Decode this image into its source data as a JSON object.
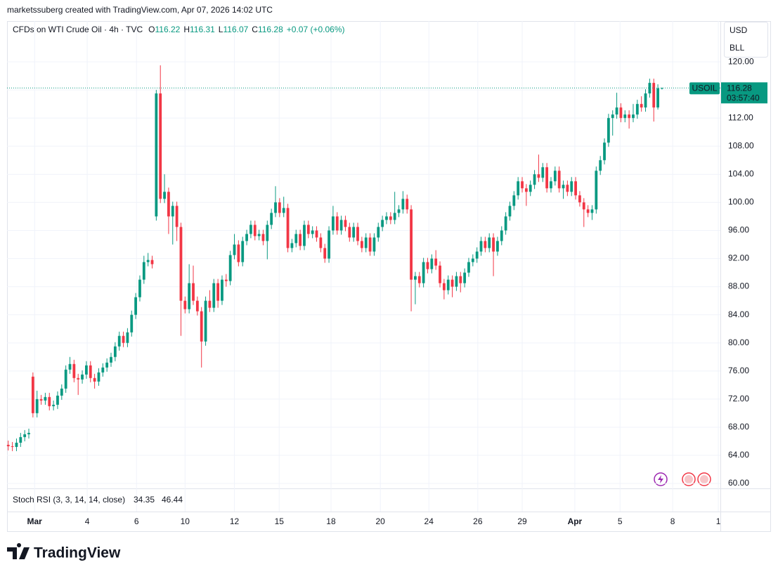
{
  "header": "marketssuberg created with TradingView.com, Apr 07, 2026 14:02 UTC",
  "brand": "TradingView",
  "scale_menu": [
    "USD",
    "BLL"
  ],
  "chart_data": {
    "type": "candlestick",
    "title": "CFDs on WTI Crude Oil · 4h · TVC",
    "symbol": "USOIL",
    "countdown": "03:57:40",
    "ohlc_letters": [
      "O",
      "H",
      "L",
      "C"
    ],
    "change": "+0.07 (+0.06%)",
    "up_color": "#089981",
    "down_color": "#f23645",
    "grid": true,
    "open": [
      65.5,
      65.3,
      65.2,
      65.8,
      66.6,
      67.0,
      75.2,
      70.0,
      72.0,
      71.8,
      72.3,
      71.0,
      71.2,
      72.5,
      73.5,
      76.2,
      77.0,
      75.0,
      74.8,
      75.5,
      76.8,
      75.0,
      74.5,
      75.8,
      76.5,
      77.2,
      78.0,
      79.5,
      81.0,
      80.0,
      81.5,
      84.0,
      86.5,
      89.0,
      91.5,
      91.8,
      98.0,
      115.5,
      100.5,
      101.5,
      98.0,
      99.5,
      96.5,
      86.0,
      84.8,
      88.5,
      86.0,
      84.5,
      80.2,
      86.0,
      85.0,
      88.5,
      86.0,
      89.0,
      88.8,
      92.5,
      94.0,
      91.5,
      94.5,
      95.5,
      96.8,
      95.2,
      95.5,
      94.5,
      96.8,
      98.5,
      100.0,
      98.5,
      99.2,
      93.5,
      94.2,
      95.5,
      93.8,
      96.8,
      95.5,
      96.0,
      95.0,
      93.5,
      92.0,
      96.0,
      98.0,
      96.0,
      97.5,
      96.5,
      95.0,
      96.5,
      94.5,
      93.5,
      95.0,
      93.0,
      95.0,
      96.5,
      97.5,
      98.0,
      97.5,
      98.5,
      99.0,
      100.5,
      99.0,
      89.0,
      89.5,
      88.5,
      91.5,
      90.5,
      92.0,
      91.0,
      88.5,
      87.5,
      89.0,
      88.0,
      89.5,
      88.5,
      90.0,
      91.5,
      92.0,
      93.0,
      94.5,
      93.5,
      95.0,
      93.0,
      94.5,
      96.0,
      98.0,
      99.5,
      101.0,
      103.0,
      102.0,
      101.5,
      102.5,
      104.0,
      103.5,
      105.0,
      102.0,
      103.0,
      104.5,
      102.0,
      102.5,
      101.5,
      103.0,
      101.0,
      100.0,
      99.0,
      98.5,
      99.0,
      104.5,
      106.0,
      108.5,
      112.0,
      112.5,
      113.5,
      112.0,
      112.5,
      112.0,
      112.5,
      114.0,
      113.5,
      115.5,
      117.0,
      113.5,
      116.22
    ],
    "high": [
      66.1,
      65.9,
      66.4,
      67.2,
      67.6,
      67.8,
      75.8,
      73.2,
      72.6,
      72.9,
      72.9,
      71.8,
      73.1,
      74.1,
      76.8,
      78.0,
      77.6,
      75.6,
      76.1,
      77.4,
      77.4,
      75.6,
      76.4,
      77.1,
      77.8,
      78.6,
      80.1,
      81.6,
      81.6,
      82.1,
      84.6,
      87.1,
      89.6,
      92.4,
      92.8,
      92.4,
      116.0,
      119.5,
      104.0,
      102.1,
      100.1,
      100.1,
      97.1,
      86.6,
      91.2,
      91.0,
      86.6,
      85.1,
      86.6,
      87.5,
      89.1,
      89.1,
      89.6,
      89.8,
      93.1,
      95.5,
      94.6,
      95.1,
      96.1,
      97.4,
      97.4,
      96.1,
      96.1,
      97.4,
      99.1,
      102.3,
      100.6,
      100.8,
      99.8,
      94.8,
      96.1,
      96.1,
      97.4,
      97.4,
      96.6,
      96.6,
      95.6,
      94.1,
      96.6,
      99.5,
      98.6,
      98.1,
      98.1,
      97.1,
      97.1,
      97.1,
      95.1,
      95.6,
      95.6,
      95.6,
      97.1,
      98.1,
      98.6,
      98.6,
      101.5,
      99.6,
      101.6,
      101.1,
      99.6,
      90.1,
      90.1,
      92.1,
      92.1,
      92.6,
      93.2,
      91.6,
      89.1,
      89.6,
      89.6,
      90.1,
      90.1,
      90.6,
      92.1,
      92.6,
      93.6,
      95.1,
      95.1,
      95.6,
      95.6,
      95.1,
      96.6,
      98.6,
      100.1,
      101.6,
      103.6,
      103.6,
      102.6,
      103.1,
      104.6,
      106.8,
      105.6,
      105.6,
      103.6,
      105.1,
      105.1,
      103.1,
      103.1,
      103.6,
      103.6,
      101.6,
      100.6,
      99.6,
      99.6,
      105.1,
      106.6,
      109.1,
      112.6,
      113.1,
      115.6,
      114.1,
      113.1,
      113.1,
      114.0,
      114.6,
      115.1,
      116.1,
      117.6,
      117.6,
      116.8,
      116.31
    ],
    "low": [
      64.7,
      64.6,
      64.6,
      65.2,
      66.0,
      66.4,
      69.4,
      69.4,
      71.2,
      71.2,
      70.4,
      70.4,
      70.6,
      71.9,
      72.9,
      75.6,
      74.4,
      72.6,
      74.2,
      74.9,
      74.4,
      73.5,
      73.9,
      75.2,
      75.9,
      76.6,
      77.4,
      78.9,
      79.4,
      79.4,
      80.9,
      83.4,
      85.9,
      88.4,
      90.9,
      90.6,
      97.4,
      99.9,
      99.9,
      95.5,
      94.0,
      94.5,
      81.0,
      84.2,
      84.2,
      85.4,
      83.9,
      76.5,
      79.6,
      84.4,
      84.4,
      85.0,
      85.4,
      88.0,
      88.2,
      91.9,
      90.9,
      90.9,
      93.9,
      94.9,
      94.6,
      94.6,
      93.9,
      91.9,
      96.2,
      97.9,
      97.9,
      97.9,
      92.9,
      92.9,
      93.6,
      93.2,
      93.2,
      94.9,
      94.9,
      94.4,
      92.9,
      91.4,
      91.4,
      95.4,
      95.4,
      95.4,
      95.9,
      94.4,
      94.4,
      93.9,
      92.9,
      92.9,
      92.4,
      92.4,
      94.4,
      95.9,
      96.9,
      96.9,
      96.9,
      97.9,
      98.4,
      98.4,
      84.5,
      85.5,
      87.9,
      87.9,
      89.9,
      89.9,
      90.4,
      87.9,
      86.2,
      86.9,
      86.5,
      87.4,
      87.2,
      87.9,
      89.4,
      90.9,
      91.4,
      92.4,
      92.9,
      92.9,
      89.5,
      92.4,
      93.9,
      95.4,
      97.4,
      98.9,
      100.4,
      101.4,
      99.5,
      100.9,
      101.9,
      102.9,
      102.9,
      101.4,
      101.4,
      102.4,
      101.4,
      100.5,
      100.9,
      100.9,
      100.4,
      99.4,
      96.5,
      97.9,
      97.5,
      98.4,
      103.9,
      105.4,
      107.9,
      109.5,
      111.9,
      111.4,
      111.4,
      110.5,
      111.4,
      111.9,
      112.9,
      112.9,
      114.9,
      111.5,
      113.2,
      116.07
    ],
    "close": [
      65.3,
      65.2,
      65.8,
      66.6,
      67.0,
      67.2,
      70.0,
      72.0,
      71.8,
      72.3,
      71.0,
      71.2,
      72.5,
      73.5,
      76.2,
      77.0,
      75.0,
      74.8,
      75.5,
      76.8,
      75.0,
      74.5,
      75.8,
      76.5,
      77.2,
      78.0,
      79.5,
      81.0,
      80.0,
      81.5,
      84.0,
      86.5,
      89.0,
      91.5,
      91.8,
      91.2,
      115.5,
      100.5,
      101.5,
      98.0,
      99.5,
      96.5,
      86.0,
      84.8,
      88.5,
      86.0,
      84.5,
      80.2,
      86.0,
      85.0,
      88.5,
      86.0,
      89.0,
      88.8,
      92.5,
      94.0,
      91.5,
      94.5,
      95.5,
      96.8,
      95.2,
      95.5,
      94.5,
      96.8,
      98.5,
      100.0,
      98.5,
      99.2,
      93.5,
      94.2,
      95.5,
      93.8,
      96.8,
      95.5,
      96.0,
      95.0,
      93.5,
      92.0,
      96.0,
      98.0,
      96.0,
      97.5,
      96.5,
      95.0,
      96.5,
      94.5,
      93.5,
      95.0,
      93.0,
      95.0,
      96.5,
      97.5,
      98.0,
      97.5,
      98.5,
      99.0,
      100.5,
      99.0,
      89.0,
      89.5,
      88.5,
      91.5,
      90.5,
      92.0,
      91.0,
      88.5,
      87.5,
      89.0,
      88.0,
      89.5,
      88.5,
      90.0,
      91.5,
      92.0,
      93.0,
      94.5,
      93.5,
      95.0,
      93.0,
      94.5,
      96.0,
      98.0,
      99.5,
      101.0,
      103.0,
      102.0,
      101.5,
      102.5,
      104.0,
      103.5,
      105.0,
      102.0,
      103.0,
      104.5,
      102.0,
      102.5,
      101.5,
      103.0,
      101.0,
      100.0,
      99.0,
      98.5,
      99.0,
      104.5,
      106.0,
      108.5,
      112.0,
      112.5,
      113.5,
      112.0,
      112.5,
      112.0,
      112.5,
      114.0,
      113.5,
      115.5,
      117.0,
      113.5,
      116.22,
      116.28
    ],
    "xlim": [
      -0.3,
      173.2
    ],
    "xticks": [
      {
        "value": 6.4,
        "label": "Mar"
      },
      {
        "value": 19.2,
        "label": "4"
      },
      {
        "value": 31.2,
        "label": "6"
      },
      {
        "value": 43.0,
        "label": "10"
      },
      {
        "value": 55.0,
        "label": "12"
      },
      {
        "value": 65.9,
        "label": "15"
      },
      {
        "value": 78.5,
        "label": "18"
      },
      {
        "value": 90.5,
        "label": "20"
      },
      {
        "value": 102.3,
        "label": "24"
      },
      {
        "value": 114.2,
        "label": "26"
      },
      {
        "value": 125.0,
        "label": "29"
      },
      {
        "value": 137.8,
        "label": "Apr"
      },
      {
        "value": 148.8,
        "label": "5"
      },
      {
        "value": 161.6,
        "label": "8"
      },
      {
        "value": 172.7,
        "label": "1"
      }
    ],
    "ylim": [
      59.4,
      125.8
    ],
    "yticks": [
      {
        "value": 60,
        "label": "60.00"
      },
      {
        "value": 64,
        "label": "64.00"
      },
      {
        "value": 68,
        "label": "68.00"
      },
      {
        "value": 72,
        "label": "72.00"
      },
      {
        "value": 76,
        "label": "76.00"
      },
      {
        "value": 80,
        "label": "80.00"
      },
      {
        "value": 84,
        "label": "84.00"
      },
      {
        "value": 88,
        "label": "88.00"
      },
      {
        "value": 92,
        "label": "92.00"
      },
      {
        "value": 96,
        "label": "96.00"
      },
      {
        "value": 100,
        "label": "100.00"
      },
      {
        "value": 104,
        "label": "104.00"
      },
      {
        "value": 108,
        "label": "108.00"
      },
      {
        "value": 112,
        "label": "112.00"
      },
      {
        "value": 116,
        "label": "116.00"
      },
      {
        "value": 120,
        "label": "120.00"
      }
    ],
    "indicator": {
      "name": "Stoch RSI (3, 3, 14, 14, close)",
      "k": 34.35,
      "d": 46.44,
      "k_color": "#2962ff",
      "d_color": "#ff6d00"
    }
  }
}
